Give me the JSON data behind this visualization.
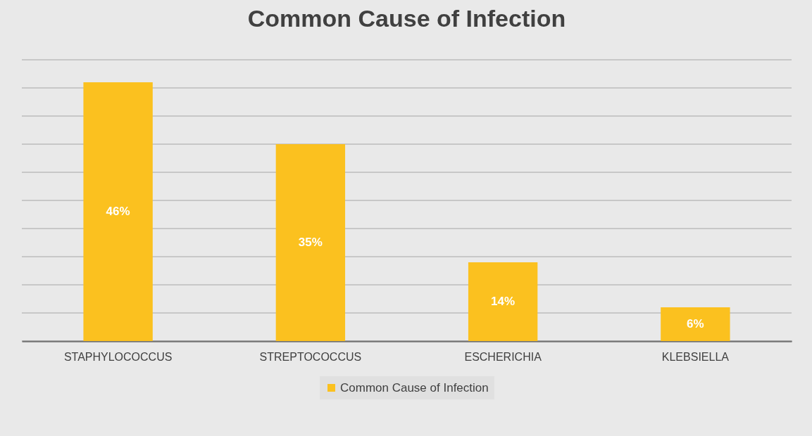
{
  "chart_data": {
    "type": "bar",
    "title": "Common Cause of Infection",
    "categories": [
      "STAPHYLOCOCCUS",
      "STREPTOCOCCUS",
      "ESCHERICHIA",
      "KLEBSIELLA"
    ],
    "series": [
      {
        "name": "Common Cause of Infection",
        "color": "#fbc11f",
        "values": [
          46,
          35,
          14,
          6
        ],
        "value_labels": [
          "46%",
          "35%",
          "14%",
          "6%"
        ]
      }
    ],
    "ylim": [
      0,
      50
    ],
    "yticks": [
      {
        "value": 0,
        "label": null
      },
      {
        "value": 5,
        "label": null
      },
      {
        "value": 10,
        "label": null
      },
      {
        "value": 15,
        "label": null
      },
      {
        "value": 20,
        "label": null
      },
      {
        "value": 25,
        "label": null
      },
      {
        "value": 30,
        "label": null
      },
      {
        "value": 35,
        "label": null
      },
      {
        "value": 40,
        "label": null
      },
      {
        "value": 45,
        "label": null
      },
      {
        "value": 50,
        "label": null
      }
    ],
    "grid": "y",
    "tick_labels": "x",
    "legend": "bottom"
  }
}
